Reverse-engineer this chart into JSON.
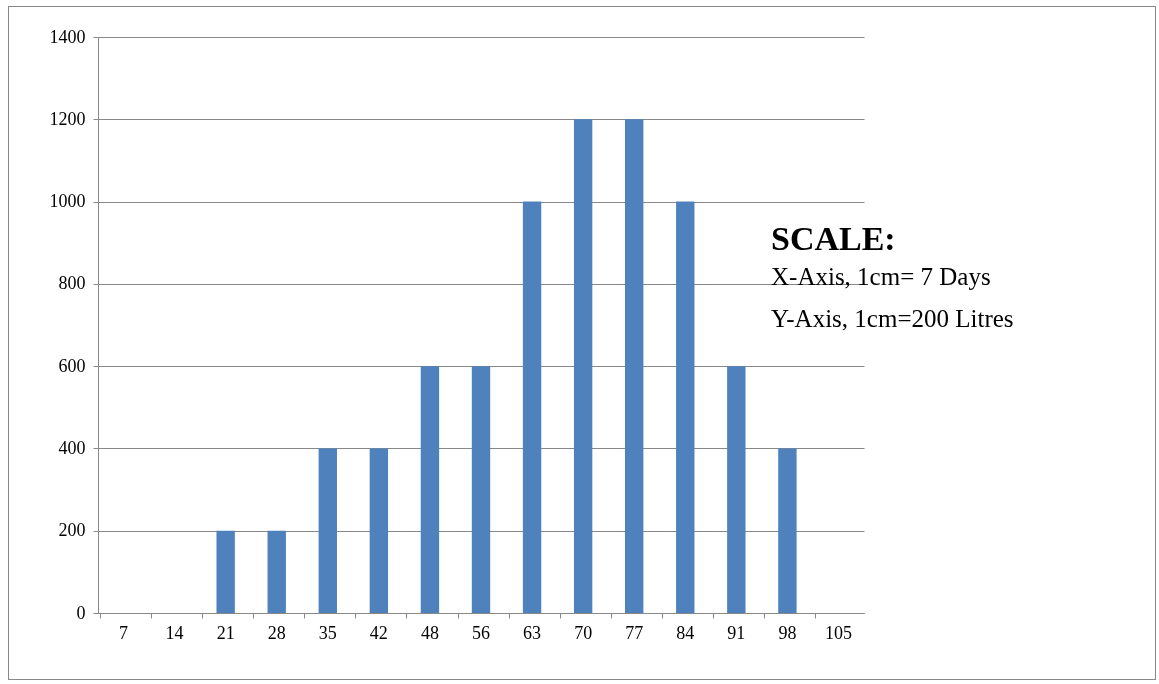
{
  "chart_data": {
    "type": "bar",
    "categories": [
      "7",
      "14",
      "21",
      "28",
      "35",
      "42",
      "48",
      "56",
      "63",
      "70",
      "77",
      "84",
      "91",
      "98",
      "105"
    ],
    "values": [
      0,
      0,
      200,
      200,
      400,
      400,
      600,
      600,
      1000,
      1200,
      1200,
      1000,
      600,
      400,
      0
    ],
    "color": "#4f81bd",
    "ylim": [
      0,
      1400
    ],
    "yticks": [
      0,
      200,
      400,
      600,
      800,
      1000,
      1200,
      1400
    ],
    "grid": "y",
    "annotations": [
      "SCALE:",
      "X-Axis, 1cm= 7 Days",
      "Y-Axis, 1cm=200 Litres"
    ]
  }
}
